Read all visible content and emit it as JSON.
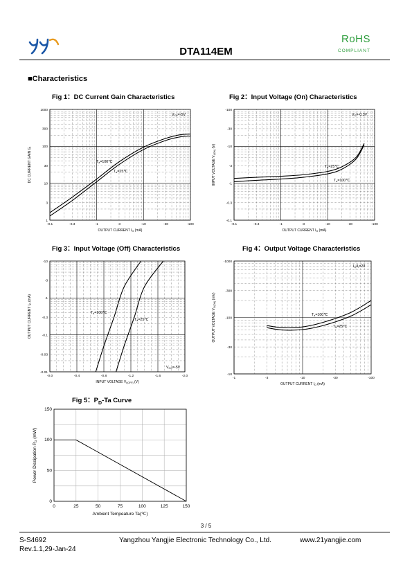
{
  "header": {
    "part_number": "DTA114EM",
    "rohs": "RoHS",
    "compliant": "COMPLIANT",
    "logo_icon": "yangjie-logo-icon",
    "accent_color": "#2f9e3e"
  },
  "section": {
    "bullet": "■",
    "title": "Characteristics"
  },
  "figures": {
    "fig1": {
      "title": "Fig 1：DC Current Gain Characteristics"
    },
    "fig2": {
      "title": "Fig 2：Input Voltage (On) Characteristics"
    },
    "fig3": {
      "title": "Fig 3：Input Voltage (Off) Characteristics"
    },
    "fig4": {
      "title": "Fig 4：Output Voltage Characteristics"
    },
    "fig5": {
      "title_pre": "Fig 5：P",
      "title_sub": "D",
      "title_post": "-Ta Curve"
    }
  },
  "chart_data": [
    {
      "id": "fig1",
      "type": "line",
      "xscale": "log",
      "yscale": "log",
      "xlim": [
        -0.1,
        -100
      ],
      "ylim": [
        1,
        1000
      ],
      "xticks": [
        "-0.1",
        "-0.3",
        "-1",
        "-3",
        "-10",
        "-30",
        "-100"
      ],
      "yticks": [
        "1",
        "3",
        "10",
        "30",
        "100",
        "300",
        "1000"
      ],
      "xlabel": "OUTPUT CURRENT",
      "xlabel_sym": "I",
      "xlabel_sub": "O",
      "xlabel_unit": "(mA)",
      "ylabel": "DC CURRENT GAIN",
      "ylabel_sym": "G",
      "ylabel_sub": "I",
      "annotation": {
        "sym": "V",
        "sub": "CE",
        "val": "=-5V"
      },
      "series": [
        {
          "label_sym": "T",
          "label_sub": "a",
          "label_val": "=100℃",
          "x": [
            -0.1,
            -0.3,
            -1,
            -3,
            -10,
            -30,
            -60,
            -100
          ],
          "y": [
            1.6,
            4.2,
            13,
            38,
            95,
            165,
            205,
            215
          ]
        },
        {
          "label_sym": "T",
          "label_sub": "a",
          "label_val": "=25℃",
          "x": [
            -0.1,
            -0.3,
            -1,
            -3,
            -10,
            -30,
            -60,
            -100
          ],
          "y": [
            1.3,
            3.4,
            11,
            32,
            82,
            145,
            180,
            190
          ]
        }
      ]
    },
    {
      "id": "fig2",
      "type": "line",
      "xscale": "log",
      "yscale": "log",
      "xlim": [
        -0.1,
        -100
      ],
      "ylim": [
        -0.1,
        -100
      ],
      "xticks": [
        "-0.1",
        "-0.3",
        "-1",
        "-3",
        "-10",
        "-30",
        "-100"
      ],
      "yticks": [
        "-0.1",
        "-0.3",
        "-1",
        "-3",
        "-10",
        "-30",
        "-100"
      ],
      "xlabel": "OUTPUT CURRENT",
      "xlabel_sym": "I",
      "xlabel_sub": "O",
      "xlabel_unit": "(mA)",
      "ylabel": "INPUT VOLTAGE",
      "ylabel_sym": "V",
      "ylabel_sub": "I(ON)",
      "ylabel_unit": "(V)",
      "annotation": {
        "sym": "V",
        "sub": "O",
        "val": "=-0.3V"
      },
      "series": [
        {
          "label_sym": "T",
          "label_sub": "a",
          "label_val": "=25℃",
          "x": [
            -0.1,
            -0.3,
            -1,
            -3,
            -10,
            -20,
            -40,
            -60
          ],
          "y": [
            -1.35,
            -1.45,
            -1.55,
            -1.7,
            -2.1,
            -2.8,
            -5,
            -12
          ]
        },
        {
          "label_sym": "T",
          "label_sub": "a",
          "label_val": "=100℃",
          "x": [
            -0.1,
            -0.3,
            -1,
            -3,
            -10,
            -20,
            -40,
            -60
          ],
          "y": [
            -1.1,
            -1.2,
            -1.3,
            -1.45,
            -1.8,
            -2.4,
            -4.5,
            -11
          ]
        }
      ]
    },
    {
      "id": "fig3",
      "type": "line",
      "xscale": "linear",
      "yscale": "log",
      "xlim": [
        0,
        -2.0
      ],
      "ylim": [
        -0.01,
        -10
      ],
      "xticks": [
        "-0.0",
        "-0.4",
        "-0.8",
        "-1.2",
        "-1.6",
        "-2.0"
      ],
      "yticks": [
        "-0.01",
        "-0.03",
        "-0.1",
        "-0.3",
        "-1",
        "-3",
        "-10"
      ],
      "xlabel": "INPUT VOLTAGE",
      "xlabel_sym": "V",
      "xlabel_sub": "I(OFF)",
      "xlabel_unit": "(V)",
      "ylabel": "OUTPUT CURRENT",
      "ylabel_sym": "I",
      "ylabel_sub": "O",
      "ylabel_unit": "(mA)",
      "annotation": {
        "sym": "V",
        "sub": "CC",
        "val": "=-5V"
      },
      "series": [
        {
          "label_sym": "T",
          "label_sub": "a",
          "label_val": "=100℃",
          "x": [
            -0.68,
            -0.8,
            -0.95,
            -1.1,
            -1.35
          ],
          "y": [
            -0.01,
            -0.05,
            -0.3,
            -2,
            -10
          ]
        },
        {
          "label_sym": "T",
          "label_sub": "a",
          "label_val": "=25℃",
          "x": [
            -0.98,
            -1.1,
            -1.25,
            -1.4,
            -1.68
          ],
          "y": [
            -0.01,
            -0.05,
            -0.3,
            -2,
            -10
          ]
        }
      ]
    },
    {
      "id": "fig4",
      "type": "line",
      "xscale": "log",
      "yscale": "log",
      "xlim": [
        -1,
        -100
      ],
      "ylim": [
        -10,
        -1000
      ],
      "xticks": [
        "-1",
        "-3",
        "-10",
        "-30",
        "-100"
      ],
      "yticks": [
        "-10",
        "-30",
        "-100",
        "-300",
        "-1000"
      ],
      "xlabel": "OUTPUT CURRENT",
      "xlabel_sym": "I",
      "xlabel_sub": "O",
      "xlabel_unit": "(mA)",
      "ylabel": "OUTPUT VOLTAGE",
      "ylabel_sym": "V",
      "ylabel_sub": "O(ON)",
      "ylabel_unit": "(mV)",
      "annotation": {
        "sym": "I",
        "sub": "O",
        "val": "/I",
        "sub2": "I",
        "val2": "=20"
      },
      "series": [
        {
          "label_sym": "T",
          "label_sub": "a",
          "label_val": "=100℃",
          "x": [
            -3,
            -5,
            -10,
            -20,
            -50,
            -100
          ],
          "y": [
            -72,
            -66,
            -68,
            -82,
            -122,
            -200
          ]
        },
        {
          "label_sym": "T",
          "label_sub": "a",
          "label_val": "=25℃",
          "x": [
            -3,
            -5,
            -10,
            -20,
            -50,
            -100
          ],
          "y": [
            -66,
            -60,
            -61,
            -72,
            -105,
            -168
          ]
        }
      ]
    },
    {
      "id": "fig5",
      "type": "line",
      "xscale": "linear",
      "yscale": "linear",
      "xlim": [
        0,
        150
      ],
      "ylim": [
        0,
        150
      ],
      "xticks": [
        "0",
        "25",
        "50",
        "75",
        "100",
        "125",
        "150"
      ],
      "yticks": [
        "0",
        "50",
        "100",
        "150"
      ],
      "xlabel": "Ambient Tempeature Ta(℃)",
      "ylabel": "Power Dissipation",
      "ylabel_sym": "P",
      "ylabel_sub": "D",
      "ylabel_unit": "(mW)",
      "series": [
        {
          "x": [
            0,
            25,
            150
          ],
          "y": [
            100,
            100,
            0
          ]
        }
      ]
    }
  ],
  "footer": {
    "page": "3 / 5",
    "doc_no": "S-S4692",
    "company": "Yangzhou Yangjie Electronic Technology Co., Ltd.",
    "website": "www.21yangjie.com",
    "revision": "Rev.1.1,29-Jan-24"
  }
}
